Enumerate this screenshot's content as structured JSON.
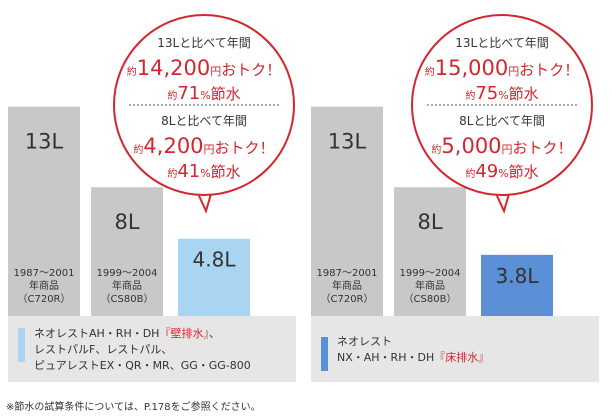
{
  "chart_data": [
    {
      "type": "bar",
      "categories": [
        "1987～2001年商品(C720R)",
        "1999～2004年商品(CS80B)",
        "ネオレストAH・RH・DH『壁排水』、レストパルF、レストパル、ピュアレストEX・QR・MR、GG・GG-800"
      ],
      "values": [
        13,
        8,
        4.8
      ],
      "unit": "L",
      "bar_labels": [
        "13L",
        "8L",
        "4.8L"
      ],
      "category_lines": [
        [
          "1987～2001",
          "年商品",
          "（C720R）"
        ],
        [
          "1999～2004",
          "年商品",
          "（CS80B）"
        ],
        []
      ],
      "legend": {
        "color": "#a9d4f2",
        "lines": [
          "ネオレストAH・RH・DH",
          "レストパルF、レストパル、",
          "ピュアレストEX・QR・MR、GG・GG-800"
        ],
        "highlight": "『壁排水』",
        "highlight_after_line": 0,
        "line0_suffix": "、"
      },
      "colors": [
        "#c8c8c8",
        "#c8c8c8",
        "#a9d4f2"
      ],
      "callout": {
        "blocks": [
          {
            "compare": "13Lと比べて年間",
            "prefix": "約",
            "amount": "14,200",
            "yen": "円",
            "savings_tail": "おトク！",
            "pct_prefix": "約",
            "pct": "71",
            "pct_unit": "%",
            "pct_tail": "節水"
          },
          {
            "compare": "8Lと比べて年間",
            "prefix": "約",
            "amount": "4,200",
            "yen": "円",
            "savings_tail": "おトク！",
            "pct_prefix": "約",
            "pct": "41",
            "pct_unit": "%",
            "pct_tail": "節水"
          }
        ]
      }
    },
    {
      "type": "bar",
      "categories": [
        "1987～2001年商品(C720R)",
        "1999～2004年商品(CS80B)",
        "ネオレストNX・AH・RH・DH『床排水』"
      ],
      "values": [
        13,
        8,
        3.8
      ],
      "unit": "L",
      "bar_labels": [
        "13L",
        "8L",
        "3.8L"
      ],
      "category_lines": [
        [
          "1987～2001",
          "年商品",
          "（C720R）"
        ],
        [
          "1999～2004",
          "年商品",
          "（CS80B）"
        ],
        []
      ],
      "legend": {
        "color": "#5b8fd6",
        "lines": [
          "ネオレスト",
          "NX・AH・RH・DH"
        ],
        "highlight": "『床排水』",
        "highlight_after_line": 1,
        "line0_suffix": ""
      },
      "colors": [
        "#c8c8c8",
        "#c8c8c8",
        "#5b8fd6"
      ],
      "callout": {
        "blocks": [
          {
            "compare": "13Lと比べて年間",
            "prefix": "約",
            "amount": "15,000",
            "yen": "円",
            "savings_tail": "おトク！",
            "pct_prefix": "約",
            "pct": "75",
            "pct_unit": "%",
            "pct_tail": "節水"
          },
          {
            "compare": "8Lと比べて年間",
            "prefix": "約",
            "amount": "5,000",
            "yen": "円",
            "savings_tail": "おトク！",
            "pct_prefix": "約",
            "pct": "49",
            "pct_unit": "%",
            "pct_tail": "節水"
          }
        ]
      }
    }
  ],
  "footnote": "※節水の試算条件については、P.178をご参照ください。",
  "accent_color": "#d3262e",
  "legend_bg": "#e6e6e6"
}
